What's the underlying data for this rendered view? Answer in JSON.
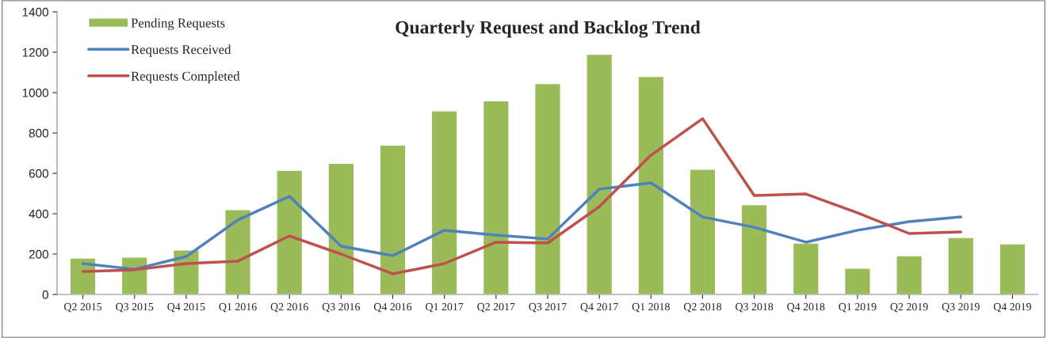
{
  "chart_data": {
    "type": "bar",
    "title": "Quarterly Request and Backlog Trend",
    "categories": [
      "Q2 2015",
      "Q3 2015",
      "Q4 2015",
      "Q1 2016",
      "Q2 2016",
      "Q3 2016",
      "Q4 2016",
      "Q1 2017",
      "Q2 2017",
      "Q3 2017",
      "Q4 2017",
      "Q1 2018",
      "Q2 2018",
      "Q3 2018",
      "Q4 2018",
      "Q1 2019",
      "Q2 2019",
      "Q3 2019",
      "Q4 2019"
    ],
    "series": [
      {
        "name": "Pending Requests",
        "color": "#9bbb59",
        "values": [
          180,
          185,
          220,
          420,
          615,
          650,
          740,
          910,
          960,
          1045,
          1190,
          1080,
          620,
          445,
          255,
          130,
          192,
          282,
          251
        ]
      },
      {
        "name": "Requests Received",
        "type": "line",
        "color": "#4f81bd",
        "values": [
          153,
          125,
          188,
          369,
          486,
          239,
          192,
          318,
          294,
          275,
          522,
          553,
          384,
          333,
          259,
          318,
          361,
          384,
          null
        ]
      },
      {
        "name": "Requests Completed",
        "type": "line",
        "color": "#c0504d",
        "values": [
          114,
          122,
          153,
          165,
          290,
          200,
          102,
          153,
          259,
          255,
          435,
          690,
          871,
          490,
          498,
          404,
          302,
          310,
          null
        ]
      }
    ],
    "ylim": [
      0,
      1400
    ],
    "yticks": [
      0,
      200,
      400,
      600,
      800,
      1000,
      1200,
      1400
    ],
    "grid": false,
    "legend": "top left",
    "marker": "none",
    "line_style": "solid"
  }
}
